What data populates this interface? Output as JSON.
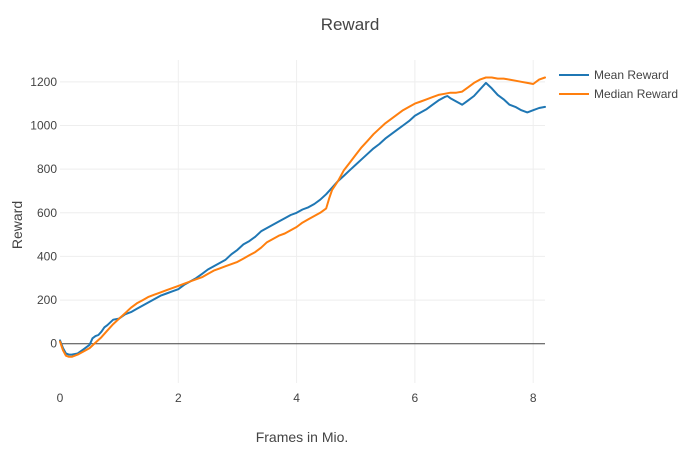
{
  "chart_data": {
    "type": "line",
    "title": "Reward",
    "xlabel": "Frames in Mio.",
    "ylabel": "Reward",
    "xlim": [
      0,
      8.2
    ],
    "ylim": [
      -180,
      1300
    ],
    "xticks": [
      0,
      2,
      4,
      6,
      8
    ],
    "yticks": [
      0,
      200,
      400,
      600,
      800,
      1000,
      1200
    ],
    "grid": true,
    "zero_line": true,
    "legend_position": "top-right",
    "series": [
      {
        "name": "Mean Reward",
        "color": "#1f77b4",
        "x": [
          0,
          0.05,
          0.1,
          0.15,
          0.2,
          0.3,
          0.4,
          0.5,
          0.55,
          0.6,
          0.65,
          0.7,
          0.75,
          0.8,
          0.9,
          1.0,
          1.1,
          1.2,
          1.3,
          1.4,
          1.5,
          1.6,
          1.7,
          1.8,
          1.9,
          2.0,
          2.1,
          2.2,
          2.3,
          2.4,
          2.5,
          2.6,
          2.7,
          2.8,
          2.9,
          3.0,
          3.1,
          3.2,
          3.3,
          3.4,
          3.5,
          3.6,
          3.7,
          3.8,
          3.9,
          4.0,
          4.1,
          4.2,
          4.3,
          4.4,
          4.5,
          4.6,
          4.7,
          4.8,
          4.9,
          5.0,
          5.1,
          5.2,
          5.3,
          5.4,
          5.5,
          5.6,
          5.7,
          5.8,
          5.9,
          6.0,
          6.1,
          6.2,
          6.3,
          6.4,
          6.5,
          6.55,
          6.6,
          6.7,
          6.8,
          6.85,
          6.9,
          7.0,
          7.1,
          7.2,
          7.3,
          7.4,
          7.5,
          7.6,
          7.7,
          7.8,
          7.9,
          8.0,
          8.1,
          8.2
        ],
        "y": [
          15,
          -20,
          -45,
          -50,
          -50,
          -45,
          -25,
          -5,
          25,
          35,
          40,
          55,
          75,
          85,
          110,
          115,
          135,
          145,
          160,
          175,
          190,
          205,
          220,
          230,
          240,
          250,
          270,
          285,
          300,
          320,
          340,
          355,
          370,
          385,
          410,
          430,
          455,
          470,
          490,
          515,
          530,
          545,
          560,
          575,
          590,
          600,
          615,
          625,
          640,
          660,
          685,
          715,
          745,
          770,
          795,
          820,
          845,
          870,
          895,
          915,
          940,
          960,
          980,
          1000,
          1020,
          1045,
          1060,
          1075,
          1095,
          1115,
          1130,
          1135,
          1125,
          1110,
          1095,
          1105,
          1115,
          1135,
          1165,
          1195,
          1170,
          1140,
          1120,
          1095,
          1085,
          1070,
          1060,
          1070,
          1080,
          1085
        ]
      },
      {
        "name": "Median Reward",
        "color": "#ff7f0e",
        "x": [
          0,
          0.05,
          0.1,
          0.15,
          0.2,
          0.3,
          0.4,
          0.5,
          0.6,
          0.7,
          0.8,
          0.9,
          1.0,
          1.1,
          1.2,
          1.3,
          1.4,
          1.5,
          1.6,
          1.7,
          1.8,
          1.9,
          2.0,
          2.1,
          2.2,
          2.3,
          2.4,
          2.5,
          2.6,
          2.7,
          2.8,
          2.9,
          3.0,
          3.1,
          3.2,
          3.3,
          3.4,
          3.5,
          3.6,
          3.7,
          3.8,
          3.9,
          4.0,
          4.1,
          4.2,
          4.3,
          4.4,
          4.5,
          4.55,
          4.6,
          4.7,
          4.8,
          4.9,
          5.0,
          5.1,
          5.2,
          5.3,
          5.4,
          5.5,
          5.6,
          5.7,
          5.8,
          5.9,
          6.0,
          6.1,
          6.2,
          6.3,
          6.4,
          6.5,
          6.6,
          6.7,
          6.8,
          6.9,
          7.0,
          7.1,
          7.2,
          7.3,
          7.4,
          7.5,
          7.6,
          7.7,
          7.8,
          7.9,
          8.0,
          8.1,
          8.2
        ],
        "y": [
          10,
          -30,
          -55,
          -60,
          -60,
          -50,
          -35,
          -20,
          5,
          30,
          60,
          90,
          115,
          140,
          165,
          185,
          200,
          215,
          225,
          235,
          245,
          255,
          265,
          275,
          285,
          295,
          305,
          320,
          335,
          345,
          355,
          365,
          375,
          390,
          405,
          420,
          440,
          465,
          480,
          495,
          505,
          520,
          535,
          555,
          570,
          585,
          600,
          620,
          665,
          705,
          745,
          795,
          830,
          865,
          900,
          930,
          960,
          985,
          1010,
          1030,
          1050,
          1070,
          1085,
          1100,
          1110,
          1120,
          1130,
          1140,
          1145,
          1150,
          1150,
          1155,
          1175,
          1195,
          1210,
          1220,
          1220,
          1215,
          1215,
          1210,
          1205,
          1200,
          1195,
          1190,
          1210,
          1220
        ]
      }
    ]
  }
}
